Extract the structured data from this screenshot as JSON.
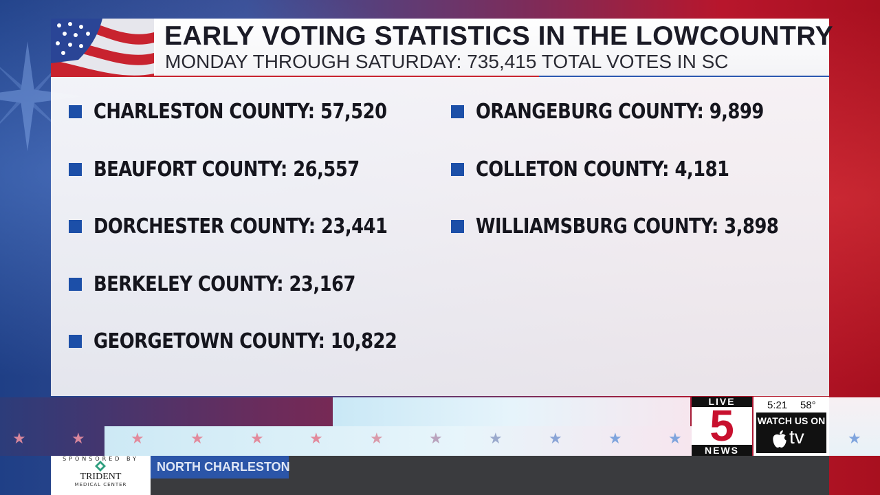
{
  "header": {
    "title": "EARLY VOTING STATISTICS IN THE LOWCOUNTRY",
    "subtitle": "MONDAY THROUGH SATURDAY: 735,415 TOTAL VOTES IN SC"
  },
  "stats": {
    "left": [
      {
        "label": "CHARLESTON COUNTY: 57,520"
      },
      {
        "label": "BEAUFORT COUNTY: 26,557"
      },
      {
        "label": "DORCHESTER COUNTY: 23,441"
      },
      {
        "label": "BERKELEY COUNTY: 23,167"
      },
      {
        "label": "GEORGETOWN COUNTY: 10,822"
      }
    ],
    "right": [
      {
        "label": "ORANGEBURG COUNTY: 9,899"
      },
      {
        "label": "COLLETON COUNTY: 4,181"
      },
      {
        "label": "WILLIAMSBURG COUNTY: 3,898"
      }
    ]
  },
  "lower_third": {
    "sponsor_top": "SPONSORED BY",
    "sponsor_name": "TRIDENT",
    "sponsor_sub": "MEDICAL CENTER",
    "location": "NORTH CHARLESTON"
  },
  "logo": {
    "top": "LIVE",
    "number": "5",
    "bottom": "NEWS"
  },
  "status": {
    "time": "5:21",
    "temperature": "58°",
    "watch_label": "WATCH US ON",
    "tv_label": "tv"
  },
  "colors": {
    "bullet": "#1c4fa8",
    "red_accent": "#c8232f",
    "blue_accent": "#2b58b0"
  }
}
